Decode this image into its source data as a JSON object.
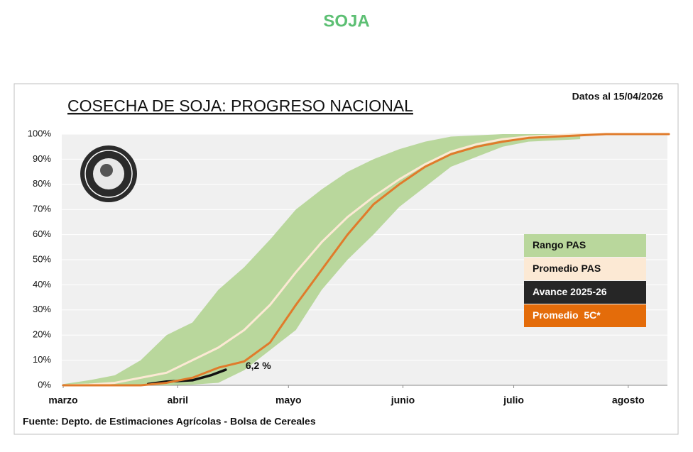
{
  "header": {
    "title": "SOJA"
  },
  "chart_data": {
    "type": "line",
    "title": "COSECHA DE SOJA: PROGRESO NACIONAL",
    "subtitle": "Datos al 15/04/2026",
    "source": "Fuente: Depto. de Estimaciones Agrícolas - Bolsa de Cereales",
    "x": [
      0,
      7,
      14,
      21,
      28,
      35,
      42,
      49,
      56,
      63,
      70,
      77,
      84,
      91,
      98,
      105,
      112,
      119,
      126,
      133,
      140,
      147,
      154,
      164
    ],
    "xlim": [
      0,
      164
    ],
    "xticks": [
      {
        "value": 0,
        "label": "marzo"
      },
      {
        "value": 31,
        "label": "abril"
      },
      {
        "value": 61,
        "label": "mayo"
      },
      {
        "value": 92,
        "label": "junio"
      },
      {
        "value": 122,
        "label": "julio"
      },
      {
        "value": 153,
        "label": "agosto"
      }
    ],
    "ylim": [
      0,
      100
    ],
    "yticks": [
      {
        "value": 0,
        "label": "0%"
      },
      {
        "value": 10,
        "label": "10%"
      },
      {
        "value": 20,
        "label": "20%"
      },
      {
        "value": 30,
        "label": "30%"
      },
      {
        "value": 40,
        "label": "40%"
      },
      {
        "value": 50,
        "label": "50%"
      },
      {
        "value": 60,
        "label": "60%"
      },
      {
        "value": 70,
        "label": "70%"
      },
      {
        "value": 80,
        "label": "80%"
      },
      {
        "value": 90,
        "label": "90%"
      },
      {
        "value": 100,
        "label": "100%"
      }
    ],
    "grid": true,
    "legend": "right",
    "series": [
      {
        "name": "Rango PAS",
        "color": "#b9d79c",
        "upper": [
          0.5,
          2,
          4,
          10,
          20,
          25,
          38,
          47,
          58,
          70,
          78,
          85,
          90,
          94,
          97,
          99,
          99.5,
          100,
          100,
          100,
          100,
          null,
          null,
          null
        ],
        "lower": [
          0,
          0,
          0,
          0,
          0,
          0.3,
          1,
          6,
          14,
          22,
          38,
          50,
          60,
          71,
          79,
          87,
          91,
          95,
          97,
          97.5,
          98,
          null,
          null,
          null
        ]
      },
      {
        "name": "Promedio PAS",
        "color": "#fce9d4",
        "values": [
          0,
          0.3,
          1,
          3,
          5,
          10,
          15,
          22,
          32,
          45,
          57,
          67,
          75,
          82,
          88,
          93,
          96,
          98,
          99,
          99.5,
          100,
          100,
          100,
          100
        ]
      },
      {
        "name": "Avance 2025-26",
        "color": "#111111",
        "x": [
          23,
          28,
          35,
          40,
          44
        ],
        "values": [
          0.5,
          1.5,
          2,
          4,
          6.2
        ],
        "value_labels": [
          null,
          null,
          null,
          null,
          "6,2 %"
        ]
      },
      {
        "name": "Promedio  5C*",
        "color": "#e07b2b",
        "values": [
          0,
          0,
          0,
          0,
          1,
          3,
          7,
          9.5,
          17,
          32,
          46,
          60,
          72,
          80,
          87,
          92,
          95,
          97,
          98.5,
          99,
          99.5,
          100,
          100,
          100
        ]
      }
    ]
  }
}
